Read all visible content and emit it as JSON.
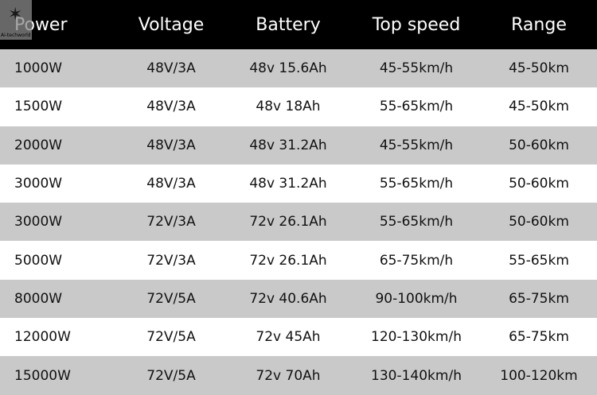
{
  "logo_text": "Ai-techworld",
  "headers": [
    "Power",
    "Voltage",
    "Battery",
    "Top speed",
    "Range"
  ],
  "rows": [
    [
      "1000W",
      "48V/3A",
      "48v 15.6Ah",
      "45-55km/h",
      "45-50km"
    ],
    [
      "1500W",
      "48V/3A",
      "48v 18Ah",
      "55-65km/h",
      "45-50km"
    ],
    [
      "2000W",
      "48V/3A",
      "48v 31.2Ah",
      "45-55km/h",
      "50-60km"
    ],
    [
      "3000W",
      "48V/3A",
      "48v 31.2Ah",
      "55-65km/h",
      "50-60km"
    ],
    [
      "3000W",
      "72V/3A",
      "72v 26.1Ah",
      "55-65km/h",
      "50-60km"
    ],
    [
      "5000W",
      "72V/3A",
      "72v 26.1Ah",
      "65-75km/h",
      "55-65km"
    ],
    [
      "8000W",
      "72V/5A",
      "72v 40.6Ah",
      "90-100km/h",
      "65-75km"
    ],
    [
      "12000W",
      "72V/5A",
      "72v 45Ah",
      "120-130km/h",
      "65-75km"
    ],
    [
      "15000W",
      "72V/5A",
      "72v 70Ah",
      "130-140km/h",
      "100-120km"
    ]
  ]
}
